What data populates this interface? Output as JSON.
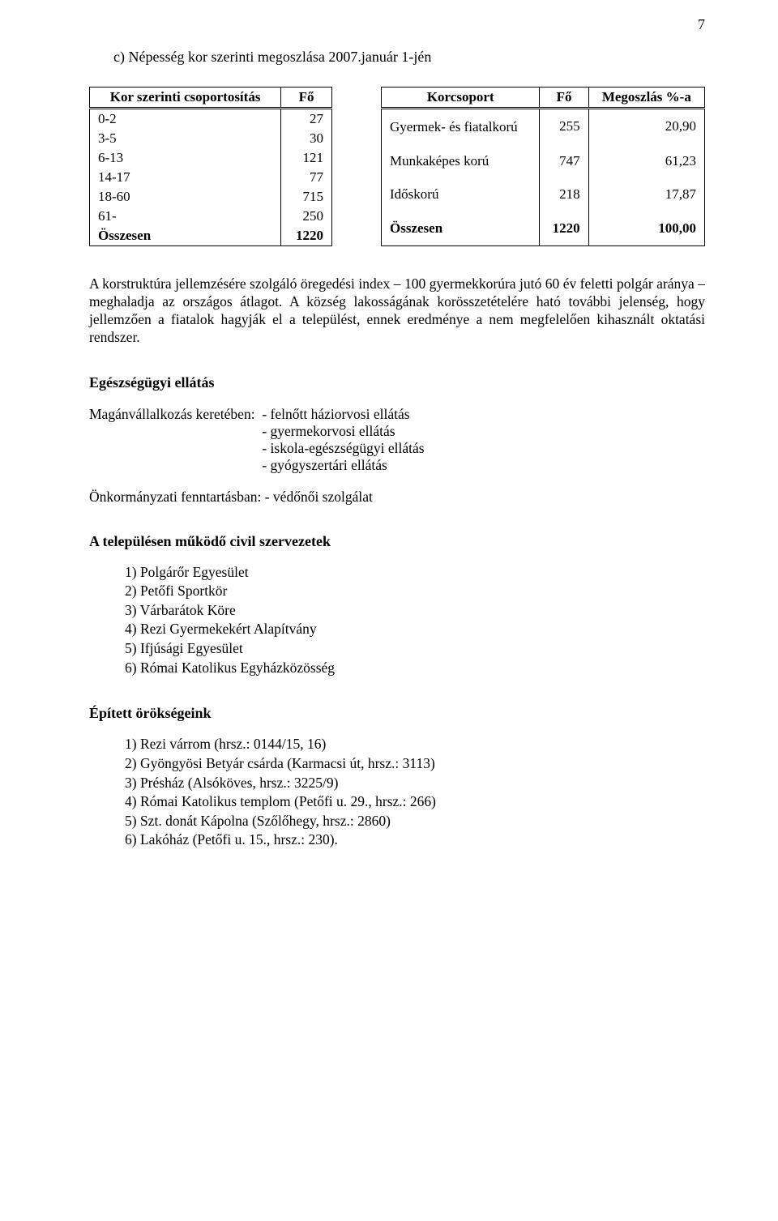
{
  "page_number": "7",
  "heading_c": "c)  Népesség kor szerinti megoszlása 2007.január 1-jén",
  "table1": {
    "headers": [
      "Kor szerinti csoportosítás",
      "Fő"
    ],
    "rows": [
      [
        "0-2",
        "27"
      ],
      [
        "3-5",
        "30"
      ],
      [
        "6-13",
        "121"
      ],
      [
        "14-17",
        "77"
      ],
      [
        "18-60",
        "715"
      ],
      [
        "61-",
        "250"
      ]
    ],
    "total": [
      "Összesen",
      "1220"
    ]
  },
  "table2": {
    "headers": [
      "Korcsoport",
      "Fő",
      "Megoszlás %-a"
    ],
    "rows": [
      [
        "Gyermek- és fiatalkorú",
        "255",
        "20,90"
      ],
      [
        "Munkaképes korú",
        "747",
        "61,23"
      ],
      [
        "Időskorú",
        "218",
        "17,87"
      ]
    ],
    "total": [
      "Összesen",
      "1220",
      "100,00"
    ]
  },
  "paragraph": "A korstruktúra jellemzésére szolgáló öregedési index – 100 gyermekkorúra jutó 60 év feletti polgár aránya – meghaladja az országos átlagot. A község lakosságának korösszetételére ható további jelenség, hogy jellemzően a fiatalok hagyják el a települést, ennek eredménye a nem megfelelően kihasznált oktatási rendszer.",
  "health_heading": "Egészségügyi ellátás",
  "health_private_label": "Magánvállalkozás keretében:  ",
  "health_private_items": [
    "- felnőtt háziorvosi ellátás",
    "- gyermekorvosi ellátás",
    "- iskola-egészségügyi ellátás",
    "- gyógyszertári ellátás"
  ],
  "health_gov": "Önkormányzati fenntartásban: - védőnői szolgálat",
  "civil_heading": "A településen működő civil szervezetek",
  "civil_list": [
    "Polgárőr Egyesület",
    "Petőfi Sportkör",
    "Várbarátok Köre",
    "Rezi Gyermekekért Alapítvány",
    "Ifjúsági Egyesület",
    "Római Katolikus Egyházközösség"
  ],
  "heritage_heading": "Épített örökségeink",
  "heritage_list": [
    "Rezi várrom (hrsz.: 0144/15, 16)",
    "Gyöngyösi Betyár csárda (Karmacsi út, hrsz.: 3113)",
    "Présház (Alsóköves, hrsz.: 3225/9)",
    "Római Katolikus templom (Petőfi u. 29., hrsz.: 266)",
    "Szt. donát Kápolna (Szőlőhegy, hrsz.: 2860)",
    "Lakóház (Petőfi u. 15., hrsz.: 230)."
  ]
}
